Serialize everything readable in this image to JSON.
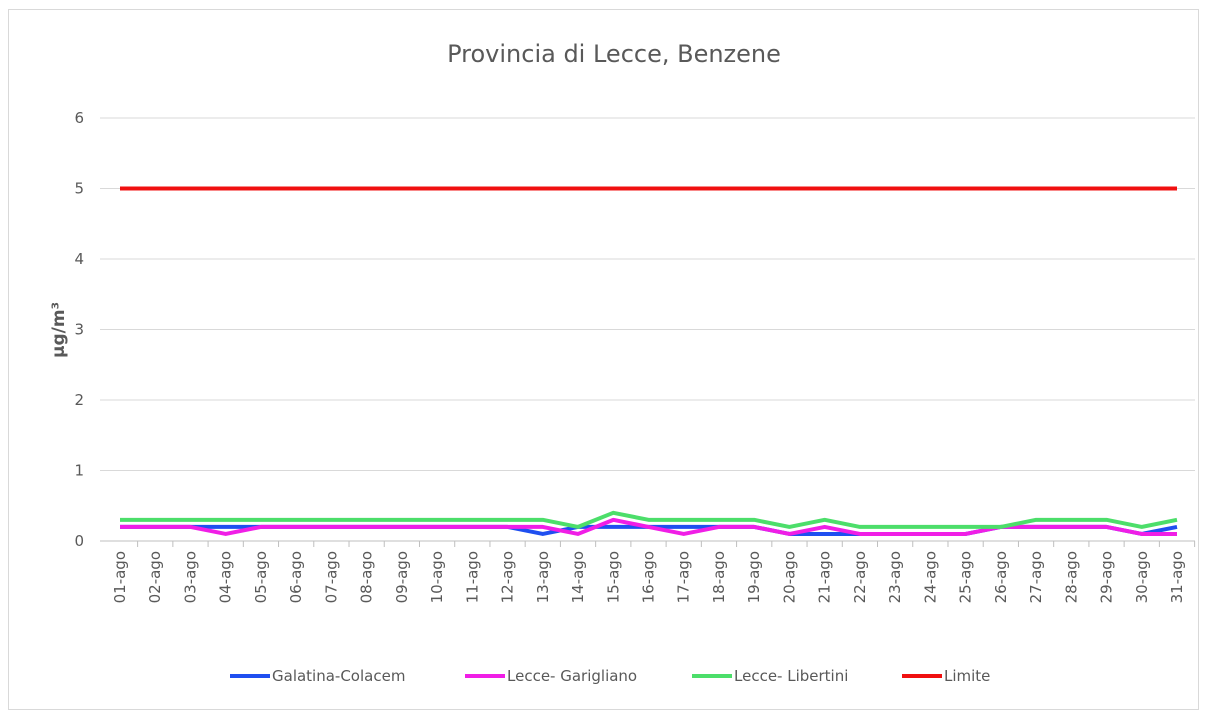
{
  "chart_data": {
    "type": "line",
    "title": "Provincia di Lecce, Benzene",
    "ylabel": "μg/m³",
    "categories": [
      "01-ago",
      "02-ago",
      "03-ago",
      "04-ago",
      "05-ago",
      "06-ago",
      "07-ago",
      "08-ago",
      "09-ago",
      "10-ago",
      "11-ago",
      "12-ago",
      "13-ago",
      "14-ago",
      "15-ago",
      "16-ago",
      "17-ago",
      "18-ago",
      "19-ago",
      "20-ago",
      "21-ago",
      "22-ago",
      "23-ago",
      "24-ago",
      "25-ago",
      "26-ago",
      "27-ago",
      "28-ago",
      "29-ago",
      "30-ago",
      "31-ago"
    ],
    "series": [
      {
        "name": "Galatina-Colacem",
        "color": "#1f4ff0",
        "values": [
          0.2,
          0.2,
          0.2,
          0.2,
          0.2,
          0.2,
          0.2,
          0.2,
          0.2,
          0.2,
          0.2,
          0.2,
          0.1,
          0.2,
          0.2,
          0.2,
          0.2,
          0.2,
          0.2,
          0.1,
          0.1,
          0.1,
          0.1,
          0.1,
          0.1,
          0.2,
          0.2,
          0.2,
          0.2,
          0.1,
          0.2
        ]
      },
      {
        "name": "Lecce- Garigliano",
        "color": "#f01ee6",
        "values": [
          0.2,
          0.2,
          0.2,
          0.1,
          0.2,
          0.2,
          0.2,
          0.2,
          0.2,
          0.2,
          0.2,
          0.2,
          0.2,
          0.1,
          0.3,
          0.2,
          0.1,
          0.2,
          0.2,
          0.1,
          0.2,
          0.1,
          0.1,
          0.1,
          0.1,
          0.2,
          0.2,
          0.2,
          0.2,
          0.1,
          0.1
        ]
      },
      {
        "name": "Lecce- Libertini",
        "color": "#4cde6a",
        "values": [
          0.3,
          0.3,
          0.3,
          0.3,
          0.3,
          0.3,
          0.3,
          0.3,
          0.3,
          0.3,
          0.3,
          0.3,
          0.3,
          0.2,
          0.4,
          0.3,
          0.3,
          0.3,
          0.3,
          0.2,
          0.3,
          0.2,
          0.2,
          0.2,
          0.2,
          0.2,
          0.3,
          0.3,
          0.3,
          0.2,
          0.3
        ]
      },
      {
        "name": "Limite",
        "color": "#f01010",
        "values": [
          5,
          5,
          5,
          5,
          5,
          5,
          5,
          5,
          5,
          5,
          5,
          5,
          5,
          5,
          5,
          5,
          5,
          5,
          5,
          5,
          5,
          5,
          5,
          5,
          5,
          5,
          5,
          5,
          5,
          5,
          5
        ]
      }
    ],
    "ylim": [
      0,
      6
    ],
    "yticks": [
      0,
      1,
      2,
      3,
      4,
      5,
      6
    ],
    "grid": true,
    "legend": "bottom"
  }
}
